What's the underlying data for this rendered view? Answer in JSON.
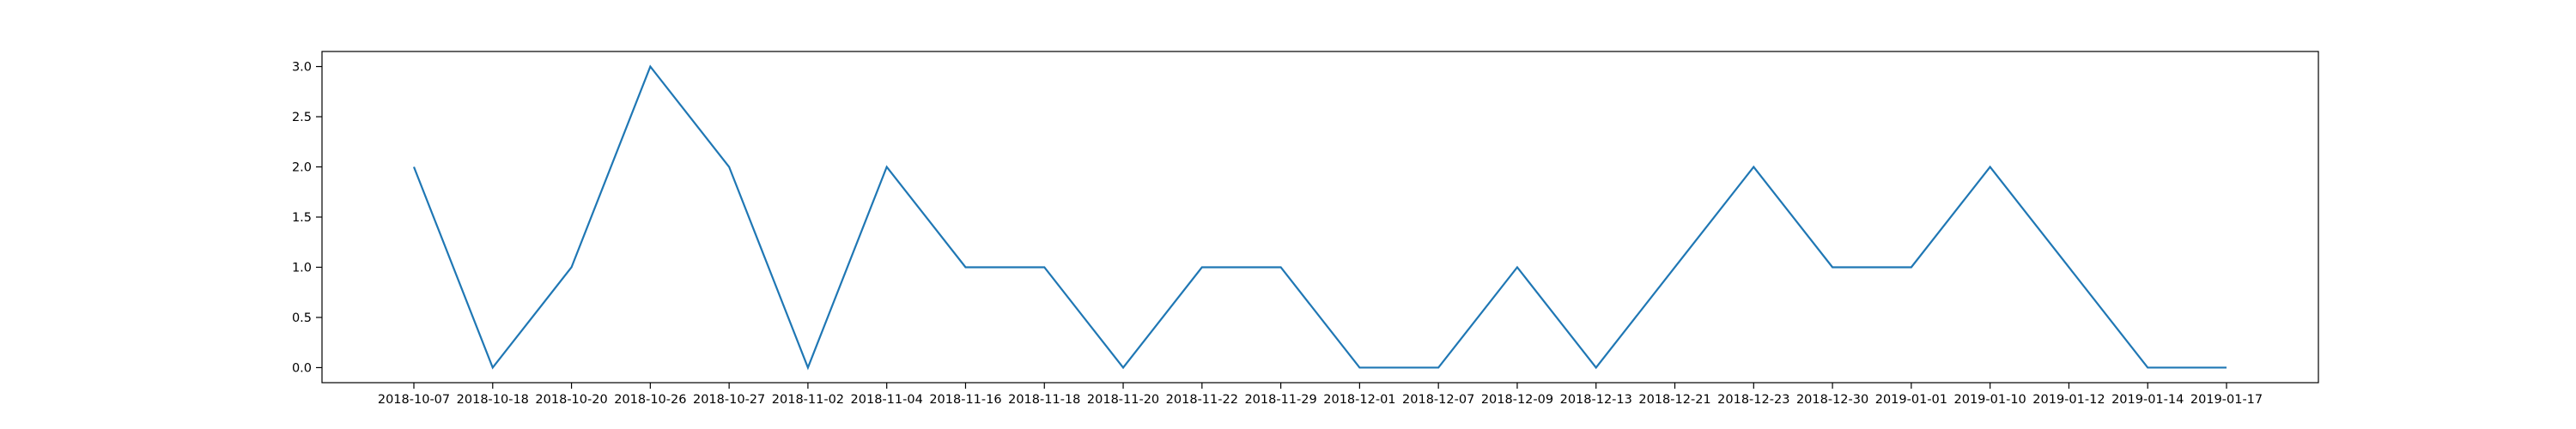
{
  "chart_data": {
    "type": "line",
    "title": "",
    "xlabel": "",
    "ylabel": "",
    "ylim": [
      -0.15,
      3.15
    ],
    "yticks": [
      0.0,
      0.5,
      1.0,
      1.5,
      2.0,
      2.5,
      3.0
    ],
    "ytick_labels": [
      "0.0",
      "0.5",
      "1.0",
      "1.5",
      "2.0",
      "2.5",
      "3.0"
    ],
    "grid": false,
    "line_color": "#1f77b4",
    "categories": [
      "2018-10-07",
      "2018-10-18",
      "2018-10-20",
      "2018-10-26",
      "2018-10-27",
      "2018-11-02",
      "2018-11-04",
      "2018-11-16",
      "2018-11-18",
      "2018-11-20",
      "2018-11-22",
      "2018-11-29",
      "2018-12-01",
      "2018-12-07",
      "2018-12-09",
      "2018-12-13",
      "2018-12-21",
      "2018-12-23",
      "2018-12-30",
      "2019-01-01",
      "2019-01-10",
      "2019-01-12",
      "2019-01-14",
      "2019-01-17"
    ],
    "values": [
      2,
      0,
      1,
      3,
      2,
      0,
      2,
      1,
      1,
      0,
      1,
      1,
      0,
      0,
      1,
      0,
      1,
      2,
      1,
      1,
      2,
      1,
      0,
      0
    ]
  }
}
